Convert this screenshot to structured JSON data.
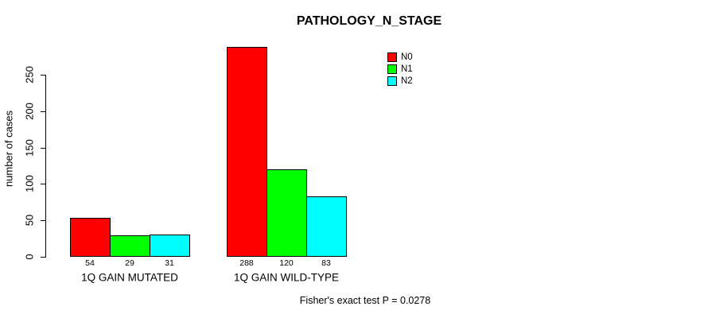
{
  "chart_data": {
    "type": "bar",
    "title": "PATHOLOGY_N_STAGE",
    "ylabel": "number of cases",
    "xlabel": "",
    "categories": [
      "1Q GAIN MUTATED",
      "1Q GAIN WILD-TYPE"
    ],
    "series": [
      {
        "name": "N0",
        "color": "#FF0000",
        "values": [
          54,
          288
        ]
      },
      {
        "name": "N1",
        "color": "#00FF00",
        "values": [
          29,
          120
        ]
      },
      {
        "name": "N2",
        "color": "#00FFFF",
        "values": [
          31,
          83
        ]
      }
    ],
    "bar_value_labels": [
      [
        54,
        29,
        31
      ],
      [
        288,
        120,
        83
      ]
    ],
    "yticks": [
      0,
      50,
      100,
      150,
      200,
      250
    ],
    "ylim": [
      0,
      290
    ],
    "grid": false,
    "legend_position": "top-right",
    "annotation": "Fisher's exact test P = 0.0278"
  },
  "colors": {
    "background": "#FFFFFF",
    "axis": "#000000",
    "text": "#000000"
  }
}
